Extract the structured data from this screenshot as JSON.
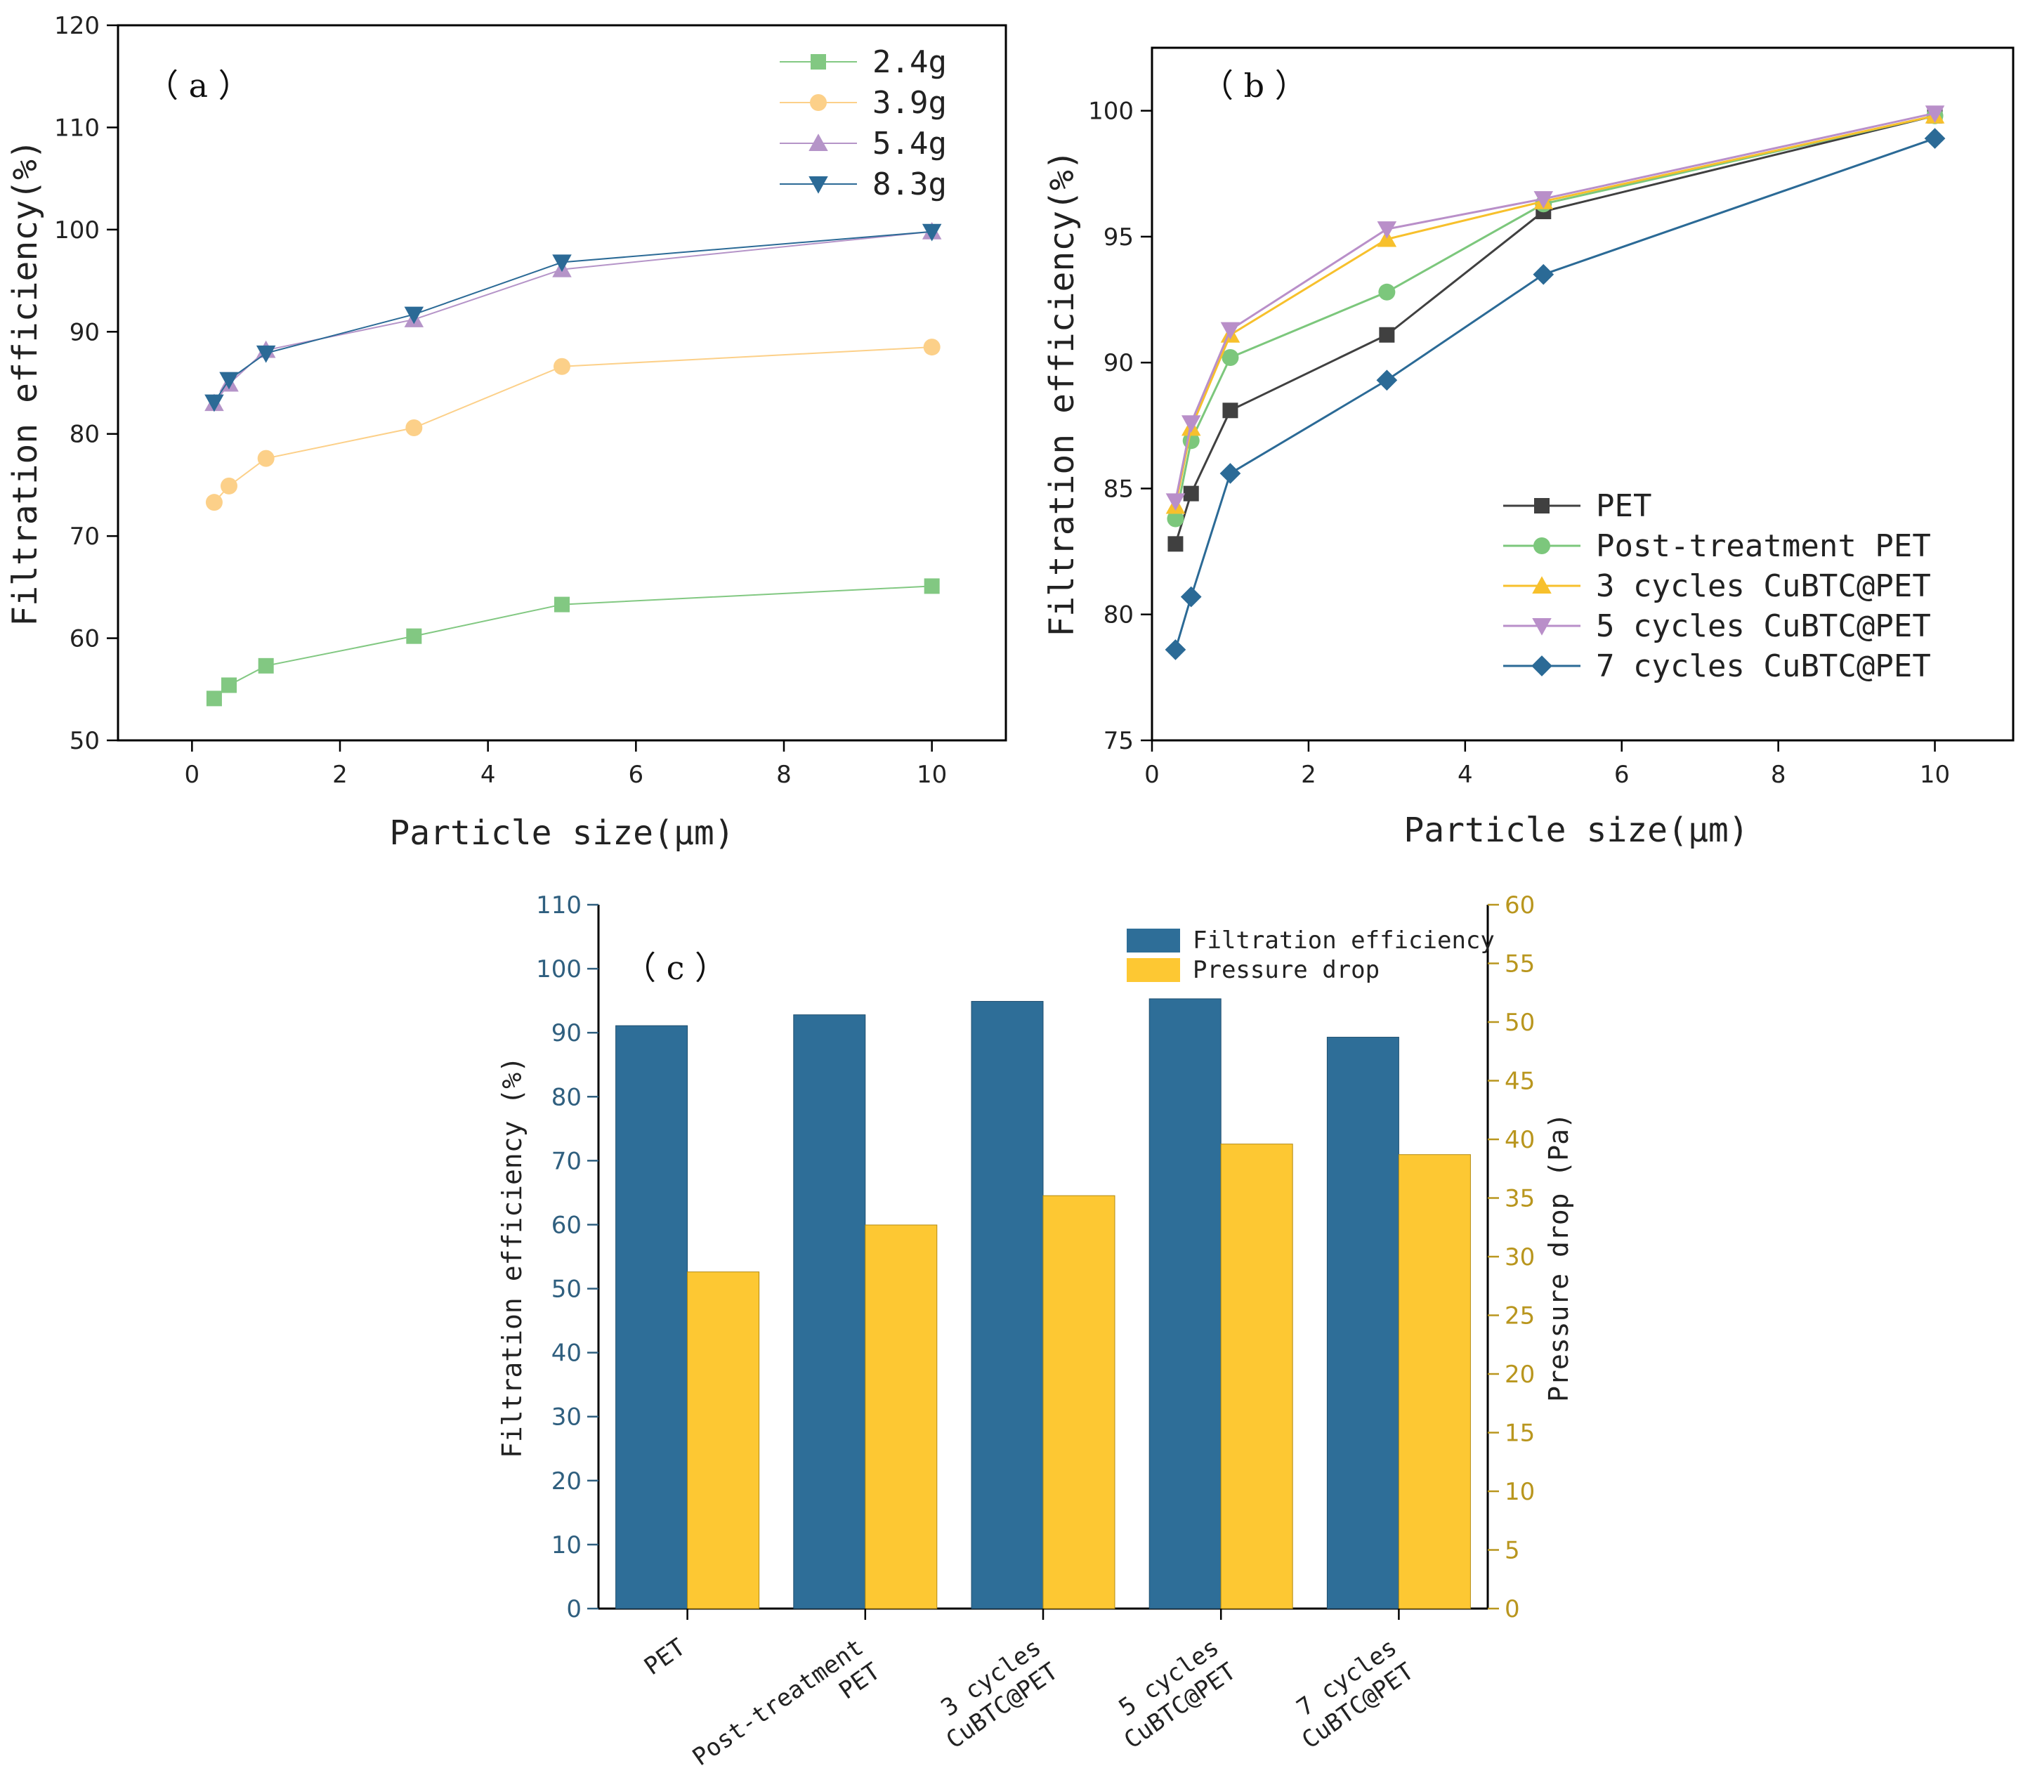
{
  "chart_data": [
    {
      "type": "line",
      "panel_label": "（ a ）",
      "xlabel": "Particle size(μm)",
      "ylabel": "Filtration efficiency(%)",
      "xlim": [
        -1,
        11
      ],
      "ylim": [
        50,
        120
      ],
      "x_ticks": [
        0,
        2,
        4,
        6,
        8,
        10
      ],
      "y_ticks": [
        50,
        60,
        70,
        80,
        90,
        100,
        110,
        120
      ],
      "x": [
        0.3,
        0.5,
        1,
        3,
        5,
        10
      ],
      "series": [
        {
          "name": "2.4g",
          "marker": "square",
          "color": "#82c882",
          "values": [
            54.1,
            55.4,
            57.3,
            60.2,
            63.3,
            65.1
          ]
        },
        {
          "name": "3.9g",
          "marker": "circle",
          "color": "#fcd089",
          "values": [
            73.3,
            74.9,
            77.6,
            80.6,
            86.6,
            88.5
          ]
        },
        {
          "name": "5.4g",
          "marker": "triangle-up",
          "color": "#b594c8",
          "values": [
            83.0,
            84.9,
            88.2,
            91.2,
            96.1,
            99.8
          ]
        },
        {
          "name": "8.3g",
          "marker": "triangle-down",
          "color": "#2b6a96",
          "values": [
            83.1,
            85.3,
            87.9,
            91.7,
            96.8,
            99.8
          ]
        }
      ],
      "legend_position": "top-right"
    },
    {
      "type": "line",
      "panel_label": "（ b ）",
      "xlabel": "Particle size(μm)",
      "ylabel": "Filtration efficiency(%)",
      "xlim": [
        0,
        11
      ],
      "ylim": [
        75,
        102.5
      ],
      "x_ticks": [
        0,
        2,
        4,
        6,
        8,
        10
      ],
      "y_ticks": [
        75,
        80,
        85,
        90,
        95,
        100
      ],
      "x": [
        0.3,
        0.5,
        1,
        3,
        5,
        10
      ],
      "series": [
        {
          "name": "PET",
          "marker": "square",
          "color": "#404040",
          "values": [
            82.8,
            84.8,
            88.1,
            91.1,
            96.0,
            99.8
          ]
        },
        {
          "name": "Post-treatment PET",
          "marker": "circle",
          "color": "#7cc77c",
          "values": [
            83.8,
            86.9,
            90.2,
            92.8,
            96.3,
            99.8
          ]
        },
        {
          "name": "3 cycles CuBTC@PET",
          "marker": "triangle-up",
          "color": "#f7c02c",
          "values": [
            84.3,
            87.4,
            91.1,
            94.9,
            96.4,
            99.8
          ]
        },
        {
          "name": "5 cycles CuBTC@PET",
          "marker": "triangle-down",
          "color": "#b98fc9",
          "values": [
            84.5,
            87.6,
            91.3,
            95.3,
            96.5,
            99.9
          ]
        },
        {
          "name": "7 cycles CuBTC@PET",
          "marker": "diamond",
          "color": "#2b6a96",
          "values": [
            78.6,
            80.7,
            85.6,
            89.3,
            93.5,
            98.9
          ]
        }
      ],
      "legend_position": "bottom-right"
    },
    {
      "type": "bar",
      "panel_label": "（ c ）",
      "categories": [
        [
          "PET"
        ],
        [
          "Post-treatment",
          "PET"
        ],
        [
          "3 cycles",
          "CuBTC@PET"
        ],
        [
          "5 cycles",
          "CuBTC@PET"
        ],
        [
          "7 cycles",
          "CuBTC@PET"
        ]
      ],
      "ylabel": "Filtration efficiency (%)",
      "y2label": "Pressure drop (Pa)",
      "ylim": [
        0,
        110
      ],
      "y2lim": [
        0,
        60
      ],
      "y_ticks": [
        0,
        10,
        20,
        30,
        40,
        50,
        60,
        70,
        80,
        90,
        100,
        110
      ],
      "y2_ticks": [
        0,
        5,
        10,
        15,
        20,
        25,
        30,
        35,
        40,
        45,
        50,
        55,
        60
      ],
      "series": [
        {
          "name": "Filtration efficiency",
          "axis": "left",
          "color": "#2e6e98",
          "values": [
            91.1,
            92.8,
            94.9,
            95.3,
            89.3
          ]
        },
        {
          "name": "Pressure drop",
          "axis": "right",
          "color": "#fdc833",
          "values": [
            28.7,
            32.7,
            35.2,
            39.6,
            38.7
          ]
        }
      ],
      "legend_position": "top-right"
    }
  ]
}
